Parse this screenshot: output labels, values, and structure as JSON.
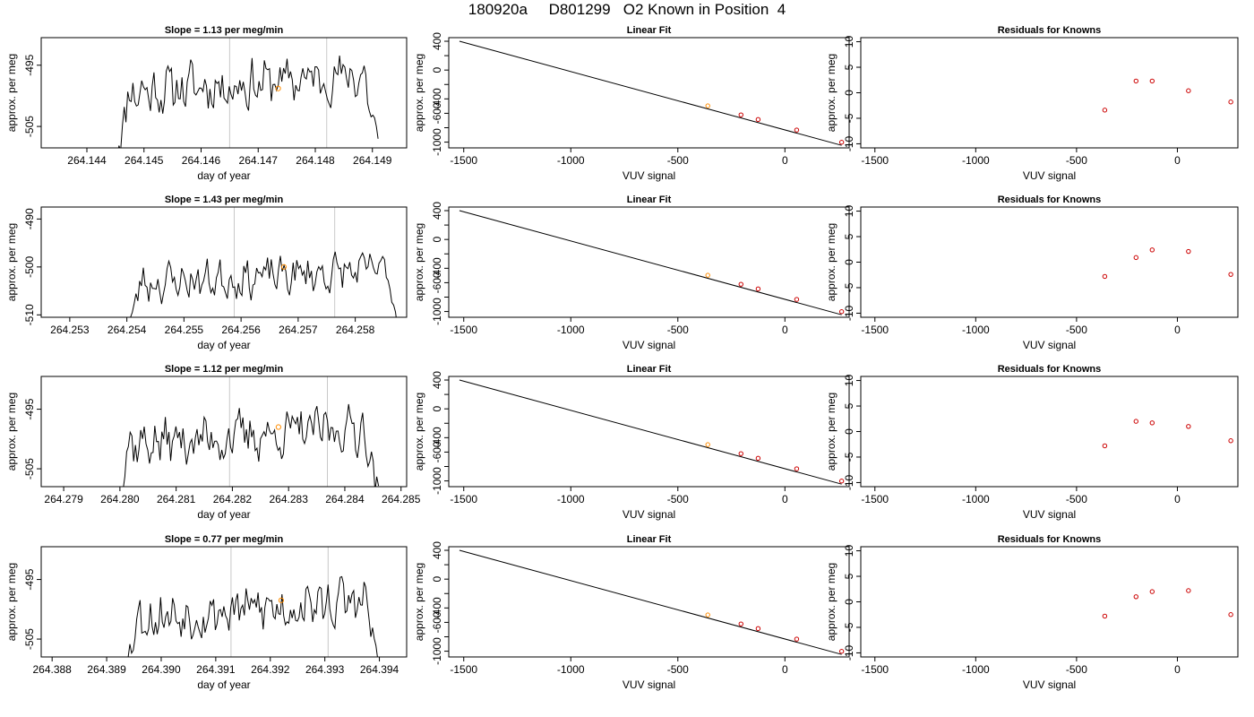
{
  "figure": {
    "title": "180920a     D801299   O2 Known in Position  4",
    "colors": {
      "trace": "#000000",
      "vline": "#c8c8c8",
      "highlight": "#ff8c00",
      "known": "#cc0000",
      "fit": "#000000"
    }
  },
  "chart_data": [
    {
      "type": "line",
      "row": 0,
      "col": 0,
      "title": "Slope =  1.13  per meg/min",
      "xlabel": "day of year",
      "ylabel": "approx. per meg",
      "xlim": [
        264.1432,
        264.1496
      ],
      "ylim": [
        -508.5,
        -490.5
      ],
      "xticks": [
        264.144,
        264.145,
        264.146,
        264.147,
        264.148,
        264.149
      ],
      "xtick_labels": [
        "264.144",
        "264.145",
        "264.146",
        "264.147",
        "264.148",
        "264.149"
      ],
      "yticks": [
        -505,
        -495
      ],
      "ytick_labels": [
        "-505",
        "-495"
      ],
      "vlines": [
        264.1465,
        264.1482
      ],
      "highlight_point": {
        "x": 264.14735,
        "y": -498.8
      },
      "trace_start": 264.1445,
      "trace_end": 264.1491,
      "trace_level": -498.0,
      "trace_seed": 11
    },
    {
      "type": "scatter",
      "row": 0,
      "col": 1,
      "title": "Linear Fit",
      "xlabel": "VUV signal",
      "ylabel": "approx. per meg",
      "xlim": [
        -1570,
        300
      ],
      "ylim": [
        -1080,
        450
      ],
      "xticks": [
        -1500,
        -1000,
        -500,
        0
      ],
      "xtick_labels": [
        "-1500",
        "-1000",
        "-500",
        "0"
      ],
      "yticks": [
        -1000,
        -800,
        -600,
        -400,
        -200,
        0,
        200,
        400
      ],
      "ytick_labels": [
        "-1000",
        "",
        "-600",
        "-400",
        "",
        "0",
        "",
        "400"
      ],
      "fit_line": {
        "x": [
          -1520,
          265
        ],
        "y": [
          400,
          -1045
        ]
      },
      "points": [
        {
          "x": -360,
          "y": -497,
          "color": "highlight"
        },
        {
          "x": -205,
          "y": -622,
          "color": "known"
        },
        {
          "x": -125,
          "y": -686,
          "color": "known"
        },
        {
          "x": 55,
          "y": -832,
          "color": "known"
        },
        {
          "x": 265,
          "y": -1002,
          "color": "known"
        }
      ]
    },
    {
      "type": "scatter",
      "row": 0,
      "col": 2,
      "title": "Residuals for Knowns",
      "xlabel": "VUV signal",
      "ylabel": "approx. per meg",
      "xlim": [
        -1570,
        300
      ],
      "ylim": [
        -10.8,
        10.8
      ],
      "xticks": [
        -1500,
        -1000,
        -500,
        0
      ],
      "xtick_labels": [
        "-1500",
        "-1000",
        "-500",
        "0"
      ],
      "yticks": [
        -10,
        -5,
        0,
        5,
        10
      ],
      "ytick_labels": [
        "-10",
        "-5",
        "0",
        "5",
        "10"
      ],
      "points": [
        {
          "x": -360,
          "y": -3.4,
          "color": "known"
        },
        {
          "x": -205,
          "y": 2.3,
          "color": "known"
        },
        {
          "x": -125,
          "y": 2.3,
          "color": "known"
        },
        {
          "x": 55,
          "y": 0.4,
          "color": "known"
        },
        {
          "x": 265,
          "y": -1.8,
          "color": "known"
        }
      ]
    },
    {
      "type": "line",
      "row": 1,
      "col": 0,
      "title": "Slope =  1.43  per meg/min",
      "xlabel": "day of year",
      "ylabel": "approx. per meg",
      "xlim": [
        264.2525,
        264.2589
      ],
      "ylim": [
        -510.5,
        -487.5
      ],
      "xticks": [
        264.253,
        264.254,
        264.255,
        264.256,
        264.257,
        264.258
      ],
      "xtick_labels": [
        "264.253",
        "264.254",
        "264.255",
        "264.256",
        "264.257",
        "264.258"
      ],
      "yticks": [
        -510,
        -500,
        -490
      ],
      "ytick_labels": [
        "-510",
        "-500",
        "-490"
      ],
      "vlines": [
        264.25588,
        264.25764
      ],
      "highlight_point": {
        "x": 264.25675,
        "y": -500.0
      },
      "trace_start": 264.254,
      "trace_end": 264.2588,
      "trace_level": -502.0,
      "trace_seed": 23
    },
    {
      "type": "scatter",
      "row": 1,
      "col": 1,
      "title": "Linear Fit",
      "xlabel": "VUV signal",
      "ylabel": "approx. per meg",
      "xlim": [
        -1570,
        300
      ],
      "ylim": [
        -1080,
        450
      ],
      "xticks": [
        -1500,
        -1000,
        -500,
        0
      ],
      "xtick_labels": [
        "-1500",
        "-1000",
        "-500",
        "0"
      ],
      "yticks": [
        -1000,
        -800,
        -600,
        -400,
        -200,
        0,
        200,
        400
      ],
      "ytick_labels": [
        "-1000",
        "",
        "-600",
        "-400",
        "",
        "0",
        "",
        "400"
      ],
      "fit_line": {
        "x": [
          -1520,
          265
        ],
        "y": [
          400,
          -1045
        ]
      },
      "points": [
        {
          "x": -360,
          "y": -497,
          "color": "highlight"
        },
        {
          "x": -205,
          "y": -622,
          "color": "known"
        },
        {
          "x": -125,
          "y": -686,
          "color": "known"
        },
        {
          "x": 55,
          "y": -832,
          "color": "known"
        },
        {
          "x": 265,
          "y": -1002,
          "color": "known"
        }
      ]
    },
    {
      "type": "scatter",
      "row": 1,
      "col": 2,
      "title": "Residuals for Knowns",
      "xlabel": "VUV signal",
      "ylabel": "approx. per meg",
      "xlim": [
        -1570,
        300
      ],
      "ylim": [
        -10.8,
        10.8
      ],
      "xticks": [
        -1500,
        -1000,
        -500,
        0
      ],
      "xtick_labels": [
        "-1500",
        "-1000",
        "-500",
        "0"
      ],
      "yticks": [
        -10,
        -5,
        0,
        5,
        10
      ],
      "ytick_labels": [
        "-10",
        "-5",
        "0",
        "5",
        "10"
      ],
      "points": [
        {
          "x": -360,
          "y": -2.8,
          "color": "known"
        },
        {
          "x": -205,
          "y": 0.9,
          "color": "known"
        },
        {
          "x": -125,
          "y": 2.4,
          "color": "known"
        },
        {
          "x": 55,
          "y": 2.1,
          "color": "known"
        },
        {
          "x": 265,
          "y": -2.4,
          "color": "known"
        }
      ]
    },
    {
      "type": "line",
      "row": 2,
      "col": 0,
      "title": "Slope =  1.12  per meg/min",
      "xlabel": "day of year",
      "ylabel": "approx. per meg",
      "xlim": [
        264.2786,
        264.2851
      ],
      "ylim": [
        -508.0,
        -489.5
      ],
      "xticks": [
        264.279,
        264.28,
        264.281,
        264.282,
        264.283,
        264.284,
        264.285
      ],
      "xtick_labels": [
        "264.279",
        "264.280",
        "264.281",
        "264.282",
        "264.283",
        "264.284",
        "264.285"
      ],
      "yticks": [
        -505,
        -495
      ],
      "ytick_labels": [
        "-505",
        "-495"
      ],
      "vlines": [
        264.28195,
        264.28369
      ],
      "highlight_point": {
        "x": 264.28282,
        "y": -498.0
      },
      "trace_start": 264.2799,
      "trace_end": 264.2846,
      "trace_level": -499.5,
      "trace_seed": 37
    },
    {
      "type": "scatter",
      "row": 2,
      "col": 1,
      "title": "Linear Fit",
      "xlabel": "VUV signal",
      "ylabel": "approx. per meg",
      "xlim": [
        -1570,
        300
      ],
      "ylim": [
        -1080,
        450
      ],
      "xticks": [
        -1500,
        -1000,
        -500,
        0
      ],
      "xtick_labels": [
        "-1500",
        "-1000",
        "-500",
        "0"
      ],
      "yticks": [
        -1000,
        -800,
        -600,
        -400,
        -200,
        0,
        200,
        400
      ],
      "ytick_labels": [
        "-1000",
        "",
        "-600",
        "-400",
        "",
        "0",
        "",
        "400"
      ],
      "fit_line": {
        "x": [
          -1520,
          265
        ],
        "y": [
          400,
          -1045
        ]
      },
      "points": [
        {
          "x": -360,
          "y": -497,
          "color": "highlight"
        },
        {
          "x": -205,
          "y": -622,
          "color": "known"
        },
        {
          "x": -125,
          "y": -686,
          "color": "known"
        },
        {
          "x": 55,
          "y": -832,
          "color": "known"
        },
        {
          "x": 265,
          "y": -1002,
          "color": "known"
        }
      ]
    },
    {
      "type": "scatter",
      "row": 2,
      "col": 2,
      "title": "Residuals for Knowns",
      "xlabel": "VUV signal",
      "ylabel": "approx. per meg",
      "xlim": [
        -1570,
        300
      ],
      "ylim": [
        -10.8,
        10.8
      ],
      "xticks": [
        -1500,
        -1000,
        -500,
        0
      ],
      "xtick_labels": [
        "-1500",
        "-1000",
        "-500",
        "0"
      ],
      "yticks": [
        -10,
        -5,
        0,
        5,
        10
      ],
      "ytick_labels": [
        "-10",
        "-5",
        "0",
        "5",
        "10"
      ],
      "points": [
        {
          "x": -360,
          "y": -2.8,
          "color": "known"
        },
        {
          "x": -205,
          "y": 2.0,
          "color": "known"
        },
        {
          "x": -125,
          "y": 1.7,
          "color": "known"
        },
        {
          "x": 55,
          "y": 1.0,
          "color": "known"
        },
        {
          "x": 265,
          "y": -1.8,
          "color": "known"
        }
      ]
    },
    {
      "type": "line",
      "row": 3,
      "col": 0,
      "title": "Slope =  0.77  per meg/min",
      "xlabel": "day of year",
      "ylabel": "approx. per meg",
      "xlim": [
        264.3878,
        264.3945
      ],
      "ylim": [
        -508.0,
        -489.5
      ],
      "xticks": [
        264.388,
        264.389,
        264.39,
        264.391,
        264.392,
        264.393,
        264.394
      ],
      "xtick_labels": [
        "264.388",
        "264.389",
        "264.390",
        "264.391",
        "264.392",
        "264.393",
        "264.394"
      ],
      "yticks": [
        -505,
        -495
      ],
      "ytick_labels": [
        "-505",
        "-495"
      ],
      "vlines": [
        264.39128,
        264.39306
      ],
      "highlight_point": {
        "x": 264.3922,
        "y": -498.5
      },
      "trace_start": 264.3893,
      "trace_end": 264.394,
      "trace_level": -500.0,
      "trace_seed": 53
    },
    {
      "type": "scatter",
      "row": 3,
      "col": 1,
      "title": "Linear Fit",
      "xlabel": "VUV signal",
      "ylabel": "approx. per meg",
      "xlim": [
        -1570,
        300
      ],
      "ylim": [
        -1080,
        450
      ],
      "xticks": [
        -1500,
        -1000,
        -500,
        0
      ],
      "xtick_labels": [
        "-1500",
        "-1000",
        "-500",
        "0"
      ],
      "yticks": [
        -1000,
        -800,
        -600,
        -400,
        -200,
        0,
        200,
        400
      ],
      "ytick_labels": [
        "-1000",
        "",
        "-600",
        "-400",
        "",
        "0",
        "",
        "400"
      ],
      "fit_line": {
        "x": [
          -1520,
          265
        ],
        "y": [
          400,
          -1045
        ]
      },
      "points": [
        {
          "x": -360,
          "y": -497,
          "color": "highlight"
        },
        {
          "x": -205,
          "y": -622,
          "color": "known"
        },
        {
          "x": -125,
          "y": -686,
          "color": "known"
        },
        {
          "x": 55,
          "y": -832,
          "color": "known"
        },
        {
          "x": 265,
          "y": -1002,
          "color": "known"
        }
      ]
    },
    {
      "type": "scatter",
      "row": 3,
      "col": 2,
      "title": "Residuals for Knowns",
      "xlabel": "VUV signal",
      "ylabel": "approx. per meg",
      "xlim": [
        -1570,
        300
      ],
      "ylim": [
        -10.8,
        10.8
      ],
      "xticks": [
        -1500,
        -1000,
        -500,
        0
      ],
      "xtick_labels": [
        "-1500",
        "-1000",
        "-500",
        "0"
      ],
      "yticks": [
        -10,
        -5,
        0,
        5,
        10
      ],
      "ytick_labels": [
        "-10",
        "-5",
        "0",
        "5",
        "10"
      ],
      "points": [
        {
          "x": -360,
          "y": -2.8,
          "color": "known"
        },
        {
          "x": -205,
          "y": 1.0,
          "color": "known"
        },
        {
          "x": -125,
          "y": 2.0,
          "color": "known"
        },
        {
          "x": 55,
          "y": 2.2,
          "color": "known"
        },
        {
          "x": 265,
          "y": -2.5,
          "color": "known"
        }
      ]
    }
  ]
}
